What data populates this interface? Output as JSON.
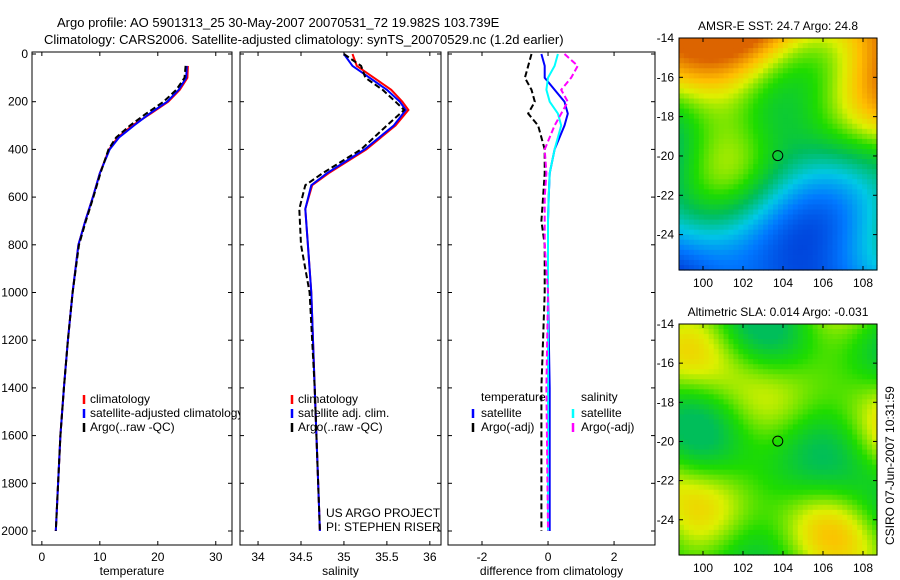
{
  "title": {
    "line1": "Argo profile: AO 5901313_25 30-May-2007 20070531_72 19.982S 103.739E",
    "line2": "Climatology: CARS2006. Satellite-adjusted climatology: synTS_20070529.nc (1.2d earlier)"
  },
  "credit": "CSIRO 07-Jun-2007 10:31:59",
  "chart_data": [
    {
      "type": "line",
      "id": "temperature",
      "xlabel": "temperature",
      "ylabel": "",
      "xlim": [
        -1.7,
        32.8
      ],
      "ylim": [
        2100,
        0
      ],
      "xticks": [
        0,
        10,
        20,
        30
      ],
      "yticks": [
        0,
        200,
        400,
        600,
        800,
        1000,
        1200,
        1400,
        1600,
        1800,
        2000
      ],
      "legend": [
        "climatology",
        "satellite-adjusted climatology",
        "Argo(..raw -QC)"
      ],
      "legend_position": "bottom-right",
      "depth": [
        50,
        100,
        150,
        200,
        250,
        300,
        350,
        400,
        500,
        600,
        700,
        800,
        1000,
        1200,
        1400,
        1600,
        1800,
        2000
      ],
      "series": [
        {
          "name": "climatology",
          "color": "#ff0000",
          "values": [
            25.2,
            25.1,
            23.8,
            21.8,
            18.8,
            15.6,
            13.1,
            11.6,
            10.0,
            8.8,
            7.5,
            6.3,
            5.3,
            4.5,
            3.8,
            3.2,
            2.8,
            2.4
          ]
        },
        {
          "name": "satellite-adjusted climatology",
          "color": "#0000ff",
          "values": [
            25.0,
            24.9,
            23.6,
            21.6,
            18.6,
            15.9,
            13.3,
            11.7,
            10.0,
            8.8,
            7.5,
            6.3,
            5.3,
            4.5,
            3.8,
            3.2,
            2.8,
            2.4
          ]
        },
        {
          "name": "Argo(..raw -QC)",
          "color": "#000000",
          "values": [
            24.8,
            24.6,
            23.2,
            21.0,
            18.0,
            15.2,
            12.8,
            11.5,
            10.1,
            8.9,
            7.6,
            6.4,
            5.3,
            4.5,
            3.8,
            3.2,
            2.8,
            2.4
          ]
        }
      ]
    },
    {
      "type": "line",
      "id": "salinity",
      "xlabel": "salinity",
      "xlim": [
        33.79,
        36.13
      ],
      "ylim": [
        2100,
        0
      ],
      "xticks": [
        34,
        34.5,
        35,
        35.5,
        36
      ],
      "legend": [
        "climatology",
        "satellite adj. clim.",
        "Argo(..raw -QC)"
      ],
      "legend_position": "bottom-right",
      "annotation": [
        "US ARGO PROJECT",
        "PI: STEPHEN RISER"
      ],
      "depth": [
        0,
        50,
        100,
        150,
        200,
        235,
        300,
        400,
        500,
        550,
        650,
        800,
        1000,
        1400,
        2000
      ],
      "series": [
        {
          "name": "climatology",
          "color": "#ff0000",
          "values": [
            35.1,
            35.15,
            35.35,
            35.55,
            35.68,
            35.75,
            35.6,
            35.26,
            34.82,
            34.63,
            34.55,
            34.58,
            34.62,
            34.66,
            34.72
          ]
        },
        {
          "name": "satellite adj. clim.",
          "color": "#0000ff",
          "values": [
            35.0,
            35.1,
            35.3,
            35.5,
            35.65,
            35.72,
            35.58,
            35.24,
            34.8,
            34.62,
            34.55,
            34.58,
            34.62,
            34.66,
            34.72
          ]
        },
        {
          "name": "Argo(..raw -QC)",
          "color": "#000000",
          "values": [
            35.0,
            35.2,
            35.25,
            35.45,
            35.6,
            35.7,
            35.5,
            35.2,
            34.75,
            34.55,
            34.48,
            34.5,
            34.6,
            34.66,
            34.72
          ]
        }
      ]
    },
    {
      "type": "line",
      "id": "difference",
      "xlabel": "difference from climatology",
      "xlim": [
        -3.03,
        3.24
      ],
      "ylim": [
        2100,
        0
      ],
      "xticks": [
        -2,
        0,
        2
      ],
      "legend_groups": [
        {
          "title": "temperature",
          "items": [
            "satellite",
            "Argo(-adj)"
          ]
        },
        {
          "title": "salinity",
          "items": [
            "satellite",
            "Argo(-adj)"
          ]
        }
      ],
      "legend_position": "middle",
      "depth": [
        0,
        50,
        100,
        150,
        200,
        250,
        300,
        400,
        500,
        600,
        700,
        800,
        1000,
        1400,
        2000
      ],
      "series": [
        {
          "name": "temperature satellite",
          "color": "#0000ff",
          "values": [
            -0.2,
            -0.1,
            -0.1,
            0.2,
            0.5,
            0.6,
            0.5,
            0.2,
            0.05,
            0.02,
            0.0,
            0.0,
            0.0,
            0.05,
            0.05
          ]
        },
        {
          "name": "temperature Argo(-adj)",
          "color": "#000000",
          "values": [
            -0.5,
            -0.6,
            -0.7,
            -0.5,
            -0.4,
            -0.6,
            -0.3,
            -0.1,
            -0.1,
            -0.15,
            -0.2,
            -0.1,
            -0.1,
            -0.2,
            -0.2
          ]
        },
        {
          "name": "salinity satellite",
          "color": "#00ffff",
          "values": [
            0.3,
            0.2,
            0.0,
            -0.05,
            0.05,
            0.3,
            0.4,
            0.2,
            0.05,
            0.02,
            0.0,
            0.0,
            0.0,
            0.0,
            0.0
          ]
        },
        {
          "name": "salinity Argo(-adj)",
          "color": "#ff00ff",
          "values": [
            0.5,
            0.9,
            0.7,
            0.4,
            0.6,
            0.4,
            0.2,
            -0.1,
            -0.05,
            -0.1,
            -0.1,
            -0.1,
            0.0,
            -0.05,
            0.0
          ]
        }
      ]
    },
    {
      "type": "heatmap",
      "id": "sst-map",
      "title": "AMSR-E SST: 24.7 Argo: 24.8",
      "xlim": [
        98.8,
        108.7
      ],
      "ylim": [
        -25.8,
        -14
      ],
      "xticks": [
        100,
        102,
        104,
        106,
        108
      ],
      "yticks": [
        -14,
        -16,
        -18,
        -20,
        -22,
        -24
      ],
      "marker": {
        "lon": 103.739,
        "lat": -19.982
      }
    },
    {
      "type": "heatmap",
      "id": "sla-map",
      "title": "Altimetric SLA: 0.014  Argo: -0.031",
      "xlim": [
        98.8,
        108.7
      ],
      "ylim": [
        -25.8,
        -14
      ],
      "xticks": [
        100,
        102,
        104,
        106,
        108
      ],
      "yticks": [
        -14,
        -16,
        -18,
        -20,
        -22,
        -24
      ],
      "marker": {
        "lon": 103.739,
        "lat": -19.982
      }
    }
  ]
}
